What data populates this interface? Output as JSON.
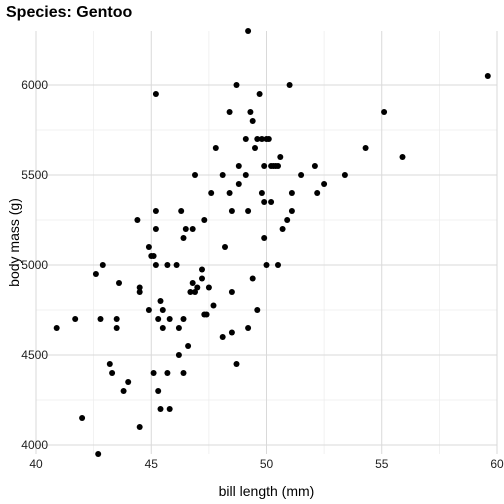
{
  "chart_data": {
    "type": "scatter",
    "title": "Species: Gentoo",
    "xlabel": "bill length (mm)",
    "ylabel": "body mass (g)",
    "xlim": [
      40,
      60
    ],
    "ylim": [
      3950,
      6300
    ],
    "xticks": [
      40,
      45,
      50,
      55,
      60
    ],
    "yticks": [
      4000,
      4500,
      5000,
      5500,
      6000
    ],
    "x_minor": [
      42.5,
      47.5,
      52.5,
      57.5
    ],
    "y_minor": [
      4250,
      4750,
      5250,
      5750
    ],
    "grid": true,
    "point_color": "#000000",
    "series": [
      {
        "points": [
          [
            40.9,
            4650
          ],
          [
            41.7,
            4700
          ],
          [
            42.0,
            4150
          ],
          [
            42.6,
            4950
          ],
          [
            42.7,
            3950
          ],
          [
            42.8,
            4700
          ],
          [
            42.9,
            5000
          ],
          [
            43.2,
            4450
          ],
          [
            43.3,
            4400
          ],
          [
            43.5,
            4650
          ],
          [
            43.5,
            4700
          ],
          [
            43.6,
            4900
          ],
          [
            43.8,
            4300
          ],
          [
            44.0,
            4350
          ],
          [
            44.4,
            5250
          ],
          [
            44.5,
            4850
          ],
          [
            44.5,
            4875
          ],
          [
            44.5,
            4100
          ],
          [
            44.9,
            5100
          ],
          [
            44.9,
            4750
          ],
          [
            45.0,
            5050
          ],
          [
            45.1,
            5050
          ],
          [
            45.1,
            4400
          ],
          [
            45.2,
            5950
          ],
          [
            45.2,
            5300
          ],
          [
            45.2,
            5200
          ],
          [
            45.2,
            5000
          ],
          [
            45.3,
            4700
          ],
          [
            45.3,
            4300
          ],
          [
            45.4,
            4800
          ],
          [
            45.4,
            4200
          ],
          [
            45.5,
            4750
          ],
          [
            45.5,
            4650
          ],
          [
            45.7,
            5000
          ],
          [
            45.7,
            4400
          ],
          [
            45.8,
            4200
          ],
          [
            45.8,
            4700
          ],
          [
            46.1,
            5000
          ],
          [
            46.2,
            4650
          ],
          [
            46.2,
            4500
          ],
          [
            46.3,
            5300
          ],
          [
            46.4,
            5150
          ],
          [
            46.4,
            4700
          ],
          [
            46.4,
            4400
          ],
          [
            46.5,
            5200
          ],
          [
            46.6,
            4550
          ],
          [
            46.7,
            4850
          ],
          [
            46.8,
            5200
          ],
          [
            46.8,
            4900
          ],
          [
            46.9,
            5500
          ],
          [
            46.9,
            4850
          ],
          [
            47.0,
            4875
          ],
          [
            47.2,
            4975
          ],
          [
            47.2,
            4925
          ],
          [
            47.3,
            5250
          ],
          [
            47.3,
            4725
          ],
          [
            47.4,
            4725
          ],
          [
            47.5,
            4875
          ],
          [
            47.6,
            5400
          ],
          [
            47.7,
            4775
          ],
          [
            47.8,
            5650
          ],
          [
            48.1,
            5500
          ],
          [
            48.1,
            4600
          ],
          [
            48.2,
            5100
          ],
          [
            48.4,
            5850
          ],
          [
            48.4,
            5400
          ],
          [
            48.5,
            5300
          ],
          [
            48.5,
            4850
          ],
          [
            48.5,
            4625
          ],
          [
            48.7,
            6000
          ],
          [
            48.7,
            4450
          ],
          [
            48.8,
            5550
          ],
          [
            48.8,
            5450
          ],
          [
            49.1,
            5700
          ],
          [
            49.1,
            5500
          ],
          [
            49.2,
            6300
          ],
          [
            49.2,
            5300
          ],
          [
            49.2,
            4650
          ],
          [
            49.3,
            5850
          ],
          [
            49.4,
            5800
          ],
          [
            49.4,
            4925
          ],
          [
            49.5,
            5650
          ],
          [
            49.6,
            5700
          ],
          [
            49.6,
            4750
          ],
          [
            49.7,
            5950
          ],
          [
            49.8,
            5700
          ],
          [
            49.8,
            5400
          ],
          [
            49.9,
            5550
          ],
          [
            49.9,
            5350
          ],
          [
            49.9,
            5150
          ],
          [
            50.0,
            5700
          ],
          [
            50.0,
            5000
          ],
          [
            50.1,
            5700
          ],
          [
            50.2,
            5550
          ],
          [
            50.2,
            5350
          ],
          [
            50.3,
            5550
          ],
          [
            50.4,
            5550
          ],
          [
            50.5,
            5000
          ],
          [
            50.5,
            5550
          ],
          [
            50.6,
            5600
          ],
          [
            50.7,
            5200
          ],
          [
            50.9,
            5250
          ],
          [
            51.0,
            6000
          ],
          [
            51.1,
            5300
          ],
          [
            51.1,
            5400
          ],
          [
            51.5,
            5500
          ],
          [
            52.1,
            5550
          ],
          [
            52.2,
            5400
          ],
          [
            52.5,
            5450
          ],
          [
            53.4,
            5500
          ],
          [
            54.3,
            5650
          ],
          [
            55.1,
            5850
          ],
          [
            55.9,
            5600
          ],
          [
            59.6,
            6050
          ]
        ]
      }
    ]
  }
}
